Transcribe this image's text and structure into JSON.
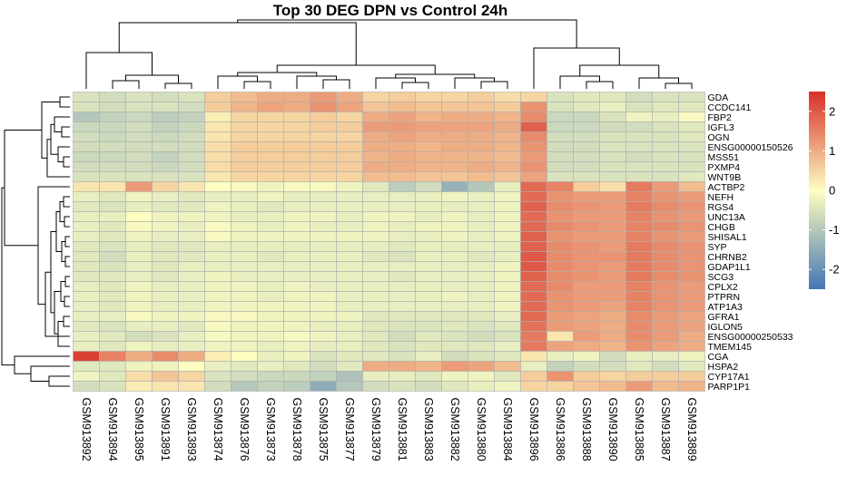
{
  "chart_data": {
    "type": "heatmap",
    "title": "Top 30 DEG DPN vs Control 24h",
    "columns": [
      "GSM913892",
      "GSM913894",
      "GSM913895",
      "GSM913891",
      "GSM913893",
      "GSM913874",
      "GSM913876",
      "GSM913873",
      "GSM913878",
      "GSM913875",
      "GSM913877",
      "GSM913879",
      "GSM913881",
      "GSM913883",
      "GSM913882",
      "GSM913880",
      "GSM913884",
      "GSM913896",
      "GSM913886",
      "GSM913888",
      "GSM913890",
      "GSM913885",
      "GSM913887",
      "GSM913889"
    ],
    "rows": [
      "GDA",
      "CCDC141",
      "FBP2",
      "IGFL3",
      "OGN",
      "ENSG00000150526",
      "MSS51",
      "PXMP4",
      "WNT9B",
      "ACTBP2",
      "NEFH",
      "RGS4",
      "UNC13A",
      "CHGB",
      "SHISAL1",
      "SYP",
      "CHRNB2",
      "GDAP1L1",
      "SCG3",
      "CPLX2",
      "PTPRN",
      "ATP1A3",
      "GFRA1",
      "IGLON5",
      "ENSG00000250533",
      "TMEM145",
      "CGA",
      "HSPA2",
      "CYP17A1",
      "PARP1P1"
    ],
    "values": [
      [
        -0.5,
        -0.6,
        -0.5,
        -0.6,
        -0.5,
        0.6,
        0.8,
        1.0,
        1.0,
        1.2,
        1.0,
        0.5,
        0.6,
        0.5,
        0.5,
        0.6,
        0.4,
        0.5,
        -0.5,
        -0.4,
        -0.4,
        -0.6,
        -0.5,
        -0.5
      ],
      [
        -0.5,
        -0.6,
        -0.5,
        -0.5,
        -0.6,
        0.6,
        0.9,
        1.1,
        1.0,
        1.3,
        1.1,
        0.7,
        0.8,
        0.7,
        0.7,
        0.7,
        0.6,
        1.3,
        -0.5,
        -0.4,
        -0.3,
        -0.5,
        -0.4,
        -0.4
      ],
      [
        -1.0,
        -0.8,
        -0.7,
        -0.9,
        -0.8,
        0.2,
        0.5,
        0.5,
        0.5,
        0.6,
        0.5,
        1.0,
        1.1,
        0.9,
        1.0,
        1.0,
        0.9,
        1.4,
        -0.7,
        -0.7,
        -0.5,
        -0.2,
        -0.3,
        -0.1
      ],
      [
        -0.7,
        -0.7,
        -0.6,
        -0.8,
        -0.7,
        0.3,
        0.5,
        0.5,
        0.5,
        0.6,
        0.6,
        1.2,
        1.2,
        1.1,
        1.1,
        1.1,
        1.0,
        1.9,
        -0.7,
        -0.7,
        -0.6,
        -0.6,
        -0.5,
        -0.4
      ],
      [
        -0.6,
        -0.7,
        -0.6,
        -0.7,
        -0.6,
        0.3,
        0.5,
        0.5,
        0.5,
        0.5,
        0.5,
        1.0,
        1.1,
        1.0,
        1.0,
        1.0,
        0.9,
        1.4,
        -0.6,
        -0.6,
        -0.5,
        -0.5,
        -0.5,
        -0.4
      ],
      [
        -0.6,
        -0.6,
        -0.6,
        -0.6,
        -0.6,
        0.4,
        0.6,
        0.6,
        0.6,
        0.6,
        0.6,
        1.0,
        1.0,
        0.9,
        1.0,
        1.0,
        0.9,
        1.3,
        -0.6,
        -0.6,
        -0.5,
        -0.5,
        -0.5,
        -0.5
      ],
      [
        -0.7,
        -0.7,
        -0.6,
        -0.8,
        -0.6,
        0.4,
        0.6,
        0.6,
        0.6,
        0.6,
        0.6,
        0.9,
        1.0,
        0.9,
        0.9,
        0.9,
        0.8,
        1.2,
        -0.6,
        -0.6,
        -0.5,
        -0.6,
        -0.5,
        -0.5
      ],
      [
        -0.6,
        -0.6,
        -0.6,
        -0.7,
        -0.6,
        0.4,
        0.6,
        0.6,
        0.6,
        0.6,
        0.6,
        1.0,
        1.0,
        0.9,
        0.9,
        1.0,
        0.9,
        1.3,
        -0.6,
        -0.6,
        -0.5,
        -0.5,
        -0.5,
        -0.5
      ],
      [
        -0.5,
        -0.5,
        -0.5,
        -0.5,
        -0.5,
        0.3,
        0.5,
        0.5,
        0.5,
        0.5,
        0.5,
        0.8,
        0.8,
        0.7,
        0.7,
        0.8,
        0.7,
        1.1,
        -0.5,
        -0.5,
        -0.5,
        -0.5,
        -0.5,
        -0.4
      ],
      [
        0.3,
        0.3,
        1.2,
        0.5,
        0.3,
        0.0,
        -0.1,
        -0.2,
        -0.1,
        -0.1,
        -0.2,
        -0.4,
        -0.9,
        -0.6,
        -1.4,
        -1.0,
        -0.3,
        1.8,
        1.5,
        0.6,
        0.4,
        1.6,
        1.2,
        0.8
      ],
      [
        -0.3,
        -0.4,
        -0.2,
        -0.3,
        -0.4,
        -0.3,
        -0.3,
        -0.2,
        -0.3,
        -0.3,
        -0.3,
        -0.3,
        -0.3,
        -0.3,
        -0.2,
        -0.3,
        -0.2,
        1.8,
        1.3,
        1.2,
        1.2,
        1.5,
        1.3,
        1.2
      ],
      [
        -0.4,
        -0.5,
        -0.3,
        -0.4,
        -0.4,
        -0.2,
        -0.3,
        -0.4,
        -0.3,
        -0.3,
        -0.3,
        -0.3,
        -0.3,
        -0.3,
        -0.3,
        -0.3,
        -0.2,
        1.9,
        1.4,
        1.3,
        1.2,
        1.6,
        1.4,
        1.3
      ],
      [
        -0.3,
        -0.3,
        0.0,
        -0.2,
        -0.2,
        -0.2,
        -0.3,
        -0.3,
        -0.2,
        -0.2,
        -0.3,
        -0.2,
        -0.2,
        -0.3,
        -0.2,
        -0.3,
        -0.2,
        1.8,
        1.3,
        1.2,
        1.2,
        1.5,
        1.3,
        1.2
      ],
      [
        -0.3,
        -0.4,
        -0.1,
        -0.2,
        -0.3,
        -0.1,
        -0.2,
        -0.3,
        -0.2,
        -0.3,
        -0.3,
        -0.2,
        -0.3,
        -0.2,
        -0.2,
        -0.3,
        -0.2,
        1.8,
        1.4,
        1.3,
        1.2,
        1.5,
        1.4,
        1.3
      ],
      [
        -0.3,
        -0.4,
        -0.2,
        -0.3,
        -0.3,
        -0.1,
        -0.2,
        -0.2,
        -0.2,
        -0.2,
        -0.2,
        -0.2,
        -0.3,
        -0.3,
        -0.2,
        -0.3,
        -0.2,
        1.9,
        1.3,
        1.2,
        1.2,
        1.5,
        1.3,
        1.2
      ],
      [
        -0.4,
        -0.5,
        -0.3,
        -0.4,
        -0.4,
        -0.3,
        -0.3,
        -0.3,
        -0.3,
        -0.3,
        -0.3,
        -0.3,
        -0.4,
        -0.3,
        -0.3,
        -0.3,
        -0.3,
        1.9,
        1.4,
        1.3,
        1.2,
        1.6,
        1.4,
        1.3
      ],
      [
        -0.4,
        -0.6,
        -0.3,
        -0.4,
        -0.4,
        -0.3,
        -0.3,
        -0.4,
        -0.3,
        -0.3,
        -0.3,
        -0.4,
        -0.5,
        -0.3,
        -0.3,
        -0.4,
        -0.3,
        2.0,
        1.4,
        1.3,
        1.3,
        1.6,
        1.4,
        1.3
      ],
      [
        -0.4,
        -0.5,
        -0.3,
        -0.4,
        -0.3,
        -0.3,
        -0.3,
        -0.3,
        -0.3,
        -0.3,
        -0.3,
        -0.3,
        -0.3,
        -0.3,
        -0.3,
        -0.3,
        -0.2,
        2.0,
        1.4,
        1.3,
        1.2,
        1.6,
        1.4,
        1.3
      ],
      [
        -0.4,
        -0.4,
        -0.3,
        -0.4,
        -0.3,
        -0.2,
        -0.3,
        -0.3,
        -0.3,
        -0.3,
        -0.3,
        -0.3,
        -0.4,
        -0.3,
        -0.3,
        -0.3,
        -0.2,
        1.9,
        1.4,
        1.3,
        1.2,
        1.6,
        1.4,
        1.3
      ],
      [
        -0.3,
        -0.4,
        -0.2,
        -0.3,
        -0.3,
        -0.2,
        -0.2,
        -0.3,
        -0.2,
        -0.3,
        -0.3,
        -0.3,
        -0.3,
        -0.3,
        -0.3,
        -0.3,
        -0.2,
        1.8,
        1.4,
        1.2,
        1.2,
        1.5,
        1.3,
        1.2
      ],
      [
        -0.3,
        -0.4,
        -0.2,
        -0.3,
        -0.3,
        -0.2,
        -0.2,
        -0.3,
        -0.2,
        -0.2,
        -0.3,
        -0.3,
        -0.3,
        -0.3,
        -0.2,
        -0.3,
        -0.2,
        1.8,
        1.3,
        1.2,
        1.2,
        1.5,
        1.3,
        1.2
      ],
      [
        -0.3,
        -0.4,
        -0.2,
        -0.3,
        -0.3,
        -0.2,
        -0.2,
        -0.2,
        -0.2,
        -0.2,
        -0.3,
        -0.3,
        -0.3,
        -0.3,
        -0.3,
        -0.3,
        -0.2,
        1.8,
        1.3,
        1.2,
        1.1,
        1.5,
        1.3,
        1.2
      ],
      [
        -0.3,
        -0.3,
        -0.1,
        -0.2,
        -0.2,
        -0.1,
        -0.1,
        -0.2,
        -0.2,
        -0.2,
        -0.2,
        -0.4,
        -0.4,
        -0.4,
        -0.4,
        -0.4,
        -0.3,
        1.8,
        1.2,
        1.1,
        1.0,
        1.4,
        1.2,
        1.1
      ],
      [
        -0.4,
        -0.5,
        -0.3,
        -0.3,
        -0.4,
        -0.1,
        -0.2,
        -0.2,
        -0.2,
        -0.3,
        -0.3,
        -0.4,
        -0.5,
        -0.5,
        -0.4,
        -0.5,
        -0.4,
        1.7,
        1.2,
        1.1,
        1.0,
        1.4,
        1.2,
        1.1
      ],
      [
        -0.3,
        -0.4,
        -0.6,
        -0.5,
        -0.3,
        -0.1,
        -0.2,
        -0.2,
        -0.1,
        -0.2,
        -0.3,
        -0.4,
        -0.6,
        -0.4,
        -0.5,
        -0.6,
        -0.5,
        1.6,
        0.3,
        1.2,
        1.0,
        1.4,
        1.2,
        1.0
      ],
      [
        -0.3,
        -0.4,
        -0.2,
        -0.3,
        -0.3,
        -0.2,
        -0.2,
        -0.3,
        -0.2,
        -0.3,
        -0.3,
        -0.4,
        -0.5,
        -0.4,
        -0.4,
        -0.4,
        -0.3,
        1.6,
        1.1,
        1.0,
        0.9,
        1.3,
        1.1,
        1.0
      ],
      [
        2.3,
        1.5,
        1.0,
        1.4,
        1.0,
        0.2,
        0.0,
        -0.3,
        -0.2,
        -0.5,
        -0.4,
        -0.4,
        -0.5,
        -0.3,
        -0.6,
        -0.5,
        -0.4,
        0.3,
        -0.3,
        -0.2,
        -0.6,
        -0.3,
        -0.3,
        -0.2
      ],
      [
        -0.4,
        -0.4,
        -0.2,
        -0.2,
        0.0,
        -0.3,
        -0.4,
        -0.3,
        -0.4,
        -0.6,
        -0.4,
        1.0,
        1.0,
        0.9,
        1.2,
        1.1,
        0.8,
        -0.3,
        -0.8,
        -0.6,
        -0.6,
        -0.4,
        -0.6,
        -0.4
      ],
      [
        -0.2,
        -0.4,
        0.4,
        0.7,
        0.5,
        -0.5,
        -0.6,
        -0.7,
        -0.7,
        -0.8,
        -1.1,
        -0.3,
        -0.3,
        -0.4,
        -0.2,
        -0.2,
        -0.4,
        0.6,
        1.3,
        0.6,
        0.5,
        0.6,
        0.6,
        0.6
      ],
      [
        -0.6,
        -0.5,
        0.2,
        0.3,
        0.3,
        -0.6,
        -1.0,
        -0.8,
        -0.9,
        -1.5,
        -1.0,
        -0.6,
        -0.5,
        -0.6,
        -0.4,
        -0.3,
        -0.2,
        0.5,
        0.5,
        0.7,
        0.8,
        1.2,
        0.8,
        0.9
      ]
    ],
    "legend": {
      "ticks": [
        2,
        1,
        0,
        -1,
        -2
      ],
      "range": [
        -2.5,
        2.5
      ]
    },
    "colors": {
      "low": "#4575b4",
      "mid": "#fefec0",
      "high": "#d73027",
      "cell_border": "#b0b0b0",
      "tree": "#000000"
    }
  }
}
